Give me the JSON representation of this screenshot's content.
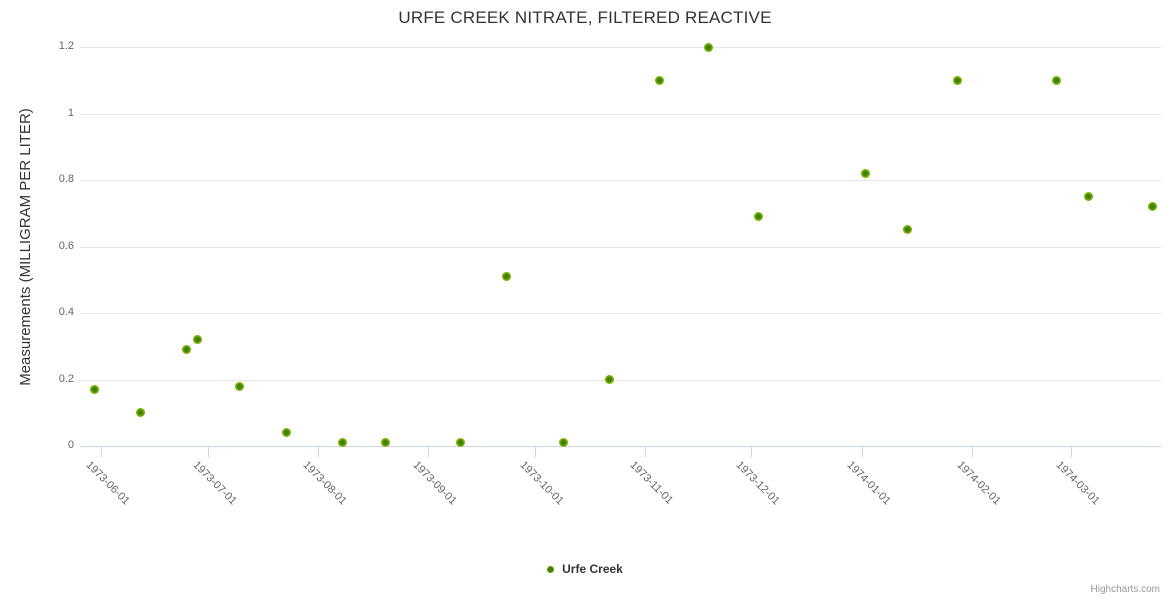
{
  "chart": {
    "title": "URFE CREEK NITRATE, FILTERED REACTIVE",
    "credits_label": "Highcharts.com"
  },
  "colors": {
    "accent_green": "#7bb600",
    "marker_center_green": "#447c00",
    "grid_line": "#e6e6e6",
    "axis_line": "#ccd6eb",
    "title_text": "#333333",
    "tick_label_text": "#666666",
    "credits_text": "#999999"
  },
  "icons": {
    "legend_marker": "circle-dot-icon"
  },
  "chart_data": {
    "type": "scatter",
    "title": "URFE CREEK NITRATE, FILTERED REACTIVE",
    "xlabel": "",
    "ylabel": "Measurements (MILLIGRAM PER LITER)",
    "legend_position": "bottom-center",
    "grid": "horizontal-only",
    "x_axis_type": "datetime",
    "xlim": [
      "1973-05-26",
      "1974-03-26"
    ],
    "ylim": [
      0,
      1.2
    ],
    "y_ticks": [
      {
        "value": 0,
        "label": "0"
      },
      {
        "value": 0.2,
        "label": "0.2"
      },
      {
        "value": 0.4,
        "label": "0.4"
      },
      {
        "value": 0.6,
        "label": "0.6"
      },
      {
        "value": 0.8,
        "label": "0.8"
      },
      {
        "value": 1,
        "label": "1"
      },
      {
        "value": 1.2,
        "label": "1.2"
      }
    ],
    "x_ticks": [
      "1973-06-01",
      "1973-07-01",
      "1973-08-01",
      "1973-09-01",
      "1973-10-01",
      "1973-11-01",
      "1973-12-01",
      "1974-01-01",
      "1974-02-01",
      "1974-03-01"
    ],
    "series": [
      {
        "name": "Urfe Creek",
        "color": "#7bb600",
        "points": [
          {
            "x": "1973-05-30",
            "y": 0.17
          },
          {
            "x": "1973-06-12",
            "y": 0.1
          },
          {
            "x": "1973-06-25",
            "y": 0.29
          },
          {
            "x": "1973-06-28",
            "y": 0.32
          },
          {
            "x": "1973-07-10",
            "y": 0.18
          },
          {
            "x": "1973-07-23",
            "y": 0.04
          },
          {
            "x": "1973-08-08",
            "y": 0.01
          },
          {
            "x": "1973-08-20",
            "y": 0.01
          },
          {
            "x": "1973-09-10",
            "y": 0.01
          },
          {
            "x": "1973-09-23",
            "y": 0.51
          },
          {
            "x": "1973-10-09",
            "y": 0.01
          },
          {
            "x": "1973-10-22",
            "y": 0.2
          },
          {
            "x": "1973-11-05",
            "y": 1.1
          },
          {
            "x": "1973-11-19",
            "y": 1.2
          },
          {
            "x": "1973-12-03",
            "y": 0.69
          },
          {
            "x": "1974-01-02",
            "y": 0.82
          },
          {
            "x": "1974-01-14",
            "y": 0.65
          },
          {
            "x": "1974-01-28",
            "y": 1.1
          },
          {
            "x": "1974-02-25",
            "y": 1.1
          },
          {
            "x": "1974-03-06",
            "y": 0.75
          },
          {
            "x": "1974-03-24",
            "y": 0.72
          }
        ]
      }
    ]
  }
}
